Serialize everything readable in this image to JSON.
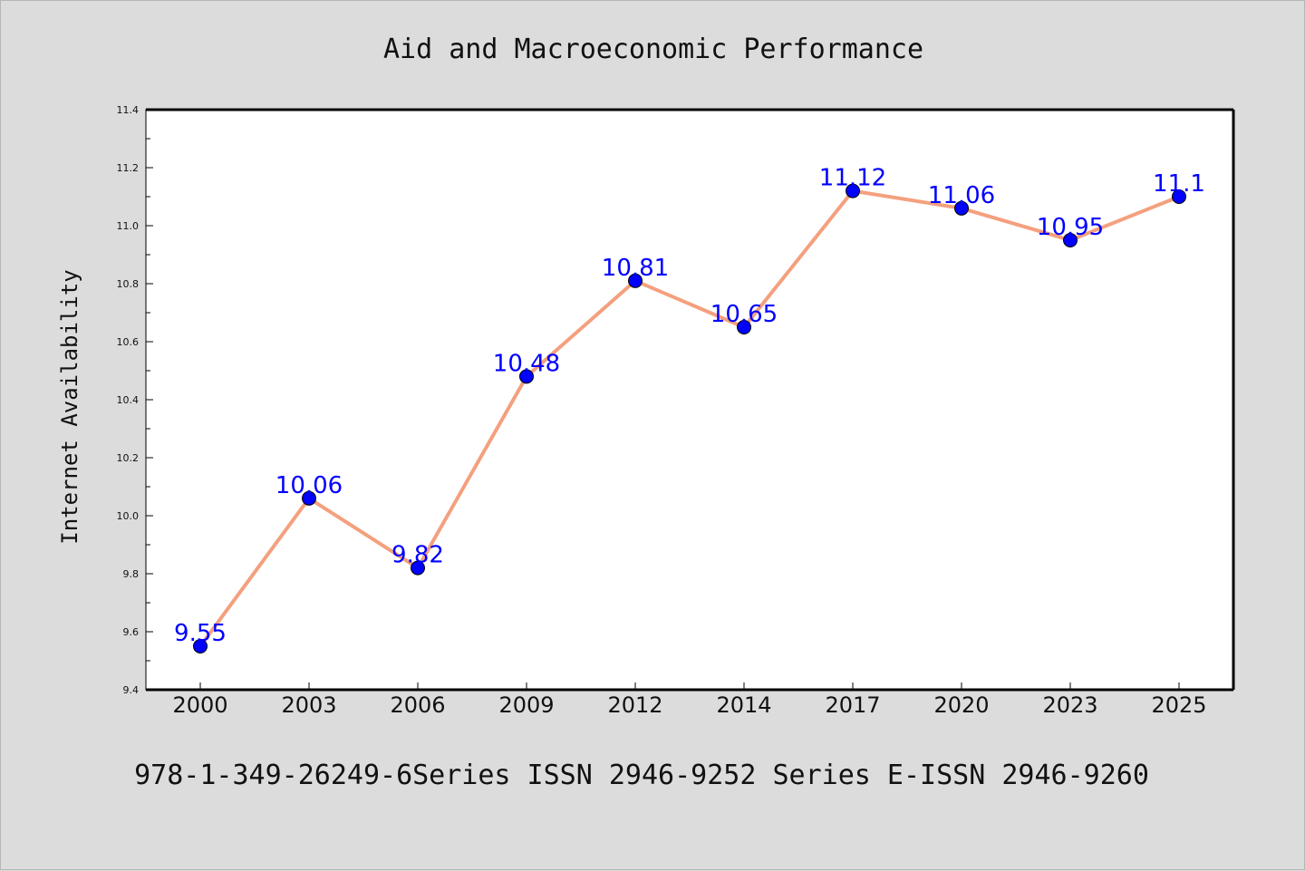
{
  "chart_data": {
    "type": "line",
    "title": "Aid and Macroeconomic Performance",
    "ylabel": "Internet Availability",
    "xlabel": "",
    "categories": [
      "2000",
      "2003",
      "2006",
      "2009",
      "2012",
      "2014",
      "2017",
      "2020",
      "2023",
      "2025"
    ],
    "values": [
      9.55,
      10.06,
      9.82,
      10.48,
      10.81,
      10.65,
      11.12,
      11.06,
      10.95,
      11.1
    ],
    "data_labels": [
      "9.55",
      "10.06",
      "9.82",
      "10.48",
      "10.81",
      "10.65",
      "11.12",
      "11.06",
      "10.95",
      "11.1"
    ],
    "ylim": [
      9.4,
      11.4
    ],
    "yticks": [
      "9.4",
      "9.6",
      "9.8",
      "10.0",
      "10.2",
      "10.4",
      "10.6",
      "10.8",
      "11.0",
      "11.2",
      "11.4"
    ],
    "grid": false,
    "line_color": "#f4a07e",
    "marker_color": "#0000ff",
    "label_color": "#0000ff"
  },
  "footer": {
    "text": "978-1-349-26249-6Series ISSN 2946-9252 Series E-ISSN 2946-9260"
  }
}
